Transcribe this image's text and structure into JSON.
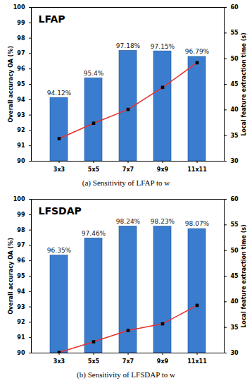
{
  "chart_data": [
    {
      "type": "bar",
      "title": "LFAP",
      "caption": "(a) Sensitivity of LFAP to w",
      "categories": [
        "3x3",
        "5x5",
        "7x7",
        "9x9",
        "11x11"
      ],
      "ylabel": "Overall accuracy OA (%)",
      "y2label": "Local feature extraction time (s)",
      "ylim": [
        90,
        100
      ],
      "yticks": [
        90,
        91,
        92,
        93,
        94,
        95,
        96,
        97,
        98,
        99,
        100
      ],
      "y2lim": [
        30,
        60
      ],
      "y2ticks": [
        30,
        35,
        40,
        45,
        50,
        55,
        60
      ],
      "series": [
        {
          "type": "bar",
          "axis": "y",
          "color": "#3a7dcf",
          "data_labels": true,
          "values": [
            94.12,
            95.4,
            97.18,
            97.15,
            96.79
          ],
          "value_labels": [
            "94.12%",
            "95.4%",
            "97.18%",
            "97.15%",
            "96.79%"
          ]
        },
        {
          "type": "line",
          "axis": "y2",
          "color": "#e8312a",
          "marker": "square",
          "values": [
            34.4,
            37.4,
            40.1,
            44.4,
            49.2
          ]
        }
      ]
    },
    {
      "type": "bar",
      "title": "LFSDAP",
      "caption": "(b) Sensitivity of LFSDAP to w",
      "categories": [
        "3x3",
        "5x5",
        "7x7",
        "9x9",
        "11x11"
      ],
      "ylabel": "Overall accuracy OA (%)",
      "y2label": "Local feature extraction time (s)",
      "ylim": [
        90,
        100
      ],
      "yticks": [
        90,
        91,
        92,
        93,
        94,
        95,
        96,
        97,
        98,
        99,
        100
      ],
      "y2lim": [
        30,
        60
      ],
      "y2ticks": [
        30,
        35,
        40,
        45,
        50,
        55,
        60
      ],
      "series": [
        {
          "type": "bar",
          "axis": "y",
          "color": "#3a7dcf",
          "data_labels": true,
          "values": [
            96.35,
            97.46,
            98.24,
            98.23,
            98.07
          ],
          "value_labels": [
            "96.35%",
            "97.46%",
            "98.24%",
            "98.23%",
            "98.07%"
          ]
        },
        {
          "type": "line",
          "axis": "y2",
          "color": "#e8312a",
          "marker": "square",
          "values": [
            30.1,
            32.2,
            34.4,
            35.7,
            39.3
          ]
        }
      ]
    }
  ]
}
